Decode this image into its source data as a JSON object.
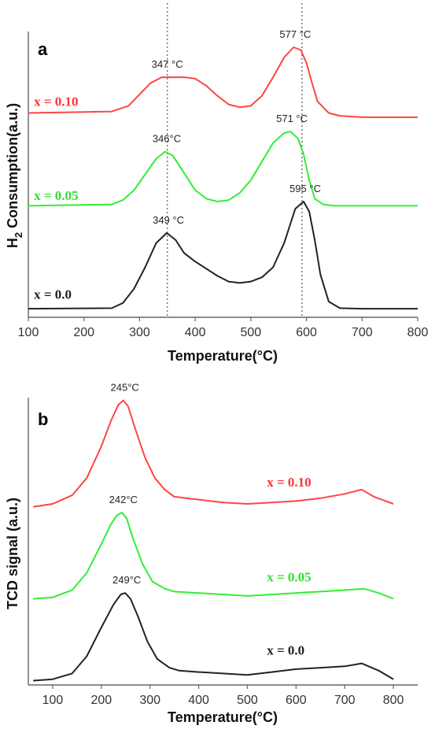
{
  "chart_data": [
    {
      "panel": "a",
      "type": "line",
      "xlabel": "Temperature(°C)",
      "ylabel": "H2 Consumption(a.u.)",
      "ylabel_parts": {
        "base": "H",
        "sub": "2",
        "rest": " Consumption(a.u.)"
      },
      "xlim": [
        100,
        800
      ],
      "xticks": [
        100,
        200,
        300,
        400,
        500,
        600,
        700,
        800
      ],
      "ylim": [
        0,
        10
      ],
      "y_ticks_shown": false,
      "grid": false,
      "ref_lines_x": [
        350,
        592
      ],
      "series": [
        {
          "name": "x = 0.10",
          "color": "#ff4444",
          "x": [
            100,
            250,
            280,
            300,
            320,
            340,
            360,
            380,
            400,
            420,
            440,
            460,
            480,
            500,
            520,
            540,
            560,
            577,
            590,
            600,
            610,
            620,
            640,
            660,
            700,
            800
          ],
          "y": [
            7.15,
            7.2,
            7.4,
            7.8,
            8.2,
            8.4,
            8.4,
            8.4,
            8.35,
            8.1,
            7.75,
            7.45,
            7.35,
            7.4,
            7.75,
            8.4,
            9.1,
            9.45,
            9.35,
            8.9,
            8.2,
            7.55,
            7.15,
            7.05,
            7.0,
            7.0
          ]
        },
        {
          "name": "x = 0.05",
          "color": "#33ee33",
          "x": [
            100,
            250,
            270,
            290,
            310,
            330,
            346,
            360,
            380,
            400,
            420,
            440,
            460,
            480,
            500,
            520,
            540,
            560,
            571,
            585,
            595,
            605,
            615,
            630,
            650,
            700,
            800
          ],
          "y": [
            3.9,
            3.95,
            4.1,
            4.45,
            5.0,
            5.55,
            5.8,
            5.65,
            5.05,
            4.45,
            4.15,
            4.05,
            4.1,
            4.35,
            4.8,
            5.45,
            6.1,
            6.45,
            6.5,
            6.25,
            5.7,
            4.8,
            4.15,
            3.95,
            3.9,
            3.9,
            3.9
          ]
        },
        {
          "name": "x = 0.0",
          "color": "#222222",
          "x": [
            100,
            250,
            270,
            290,
            310,
            330,
            349,
            365,
            380,
            400,
            420,
            440,
            460,
            480,
            500,
            520,
            540,
            560,
            580,
            595,
            605,
            615,
            625,
            640,
            660,
            700,
            800
          ],
          "y": [
            0.3,
            0.32,
            0.5,
            1.0,
            1.75,
            2.6,
            2.95,
            2.7,
            2.25,
            1.95,
            1.7,
            1.45,
            1.25,
            1.2,
            1.25,
            1.4,
            1.75,
            2.6,
            3.8,
            4.05,
            3.7,
            2.7,
            1.5,
            0.55,
            0.32,
            0.3,
            0.3
          ]
        }
      ],
      "annotations": [
        {
          "text": "577 °C",
          "x": 577,
          "y": 9.45
        },
        {
          "text": "347 °C",
          "x": 347,
          "y": 8.4
        },
        {
          "text": "571 °C",
          "x": 571,
          "y": 6.5
        },
        {
          "text": "346°C",
          "x": 346,
          "y": 5.8
        },
        {
          "text": "349 °C",
          "x": 349,
          "y": 2.95
        },
        {
          "text": "595 °C",
          "x": 595,
          "y": 4.05
        }
      ],
      "series_labels": [
        {
          "text": "x = 0.10",
          "color": "#ff3333",
          "x": 110,
          "y": 7.4
        },
        {
          "text": "x = 0.05",
          "color": "#33dd33",
          "x": 110,
          "y": 4.1
        },
        {
          "text": "x = 0.0",
          "color": "#222222",
          "x": 110,
          "y": 0.65
        }
      ]
    },
    {
      "panel": "b",
      "type": "line",
      "xlabel": "Temperature(°C)",
      "ylabel": "TCD signal (a.u.)",
      "xlim": [
        50,
        850
      ],
      "xticks": [
        100,
        200,
        300,
        400,
        500,
        600,
        700,
        800
      ],
      "ylim": [
        0,
        10
      ],
      "y_ticks_shown": false,
      "grid": false,
      "series": [
        {
          "name": "x = 0.10",
          "color": "#ff4444",
          "x": [
            60,
            100,
            140,
            170,
            200,
            220,
            235,
            245,
            255,
            270,
            290,
            310,
            330,
            350,
            400,
            450,
            500,
            550,
            600,
            650,
            700,
            735,
            760,
            800
          ],
          "y": [
            6.2,
            6.3,
            6.6,
            7.2,
            8.3,
            9.2,
            9.75,
            9.9,
            9.7,
            8.9,
            7.9,
            7.2,
            6.8,
            6.55,
            6.45,
            6.35,
            6.3,
            6.35,
            6.4,
            6.5,
            6.65,
            6.8,
            6.55,
            6.3
          ]
        },
        {
          "name": "x = 0.05",
          "color": "#33ee33",
          "x": [
            60,
            100,
            140,
            170,
            200,
            220,
            232,
            242,
            252,
            265,
            285,
            305,
            330,
            350,
            400,
            450,
            500,
            550,
            600,
            650,
            700,
            740,
            770,
            800
          ],
          "y": [
            3.0,
            3.05,
            3.3,
            3.9,
            4.9,
            5.6,
            5.9,
            6.0,
            5.8,
            5.1,
            4.2,
            3.6,
            3.35,
            3.25,
            3.2,
            3.15,
            3.1,
            3.15,
            3.2,
            3.25,
            3.3,
            3.35,
            3.2,
            3.0
          ]
        },
        {
          "name": "x = 0.0",
          "color": "#222222",
          "x": [
            60,
            100,
            140,
            170,
            200,
            225,
            240,
            249,
            260,
            275,
            295,
            315,
            340,
            360,
            400,
            450,
            500,
            550,
            600,
            650,
            700,
            735,
            770,
            800
          ],
          "y": [
            0.15,
            0.2,
            0.4,
            1.0,
            2.0,
            2.8,
            3.15,
            3.2,
            3.0,
            2.4,
            1.5,
            0.9,
            0.6,
            0.5,
            0.45,
            0.4,
            0.35,
            0.45,
            0.55,
            0.6,
            0.65,
            0.75,
            0.5,
            0.2
          ]
        }
      ],
      "annotations": [
        {
          "text": "245°C",
          "x": 245,
          "y": 9.9
        },
        {
          "text": "242°C",
          "x": 242,
          "y": 6.0
        },
        {
          "text": "249°C",
          "x": 249,
          "y": 3.2
        }
      ],
      "series_labels": [
        {
          "text": "x = 0.10",
          "color": "#ff3333",
          "x": 540,
          "y": 6.9
        },
        {
          "text": "x = 0.05",
          "color": "#33dd33",
          "x": 540,
          "y": 3.6
        },
        {
          "text": "x = 0.0",
          "color": "#222222",
          "x": 540,
          "y": 1.05
        }
      ]
    }
  ]
}
